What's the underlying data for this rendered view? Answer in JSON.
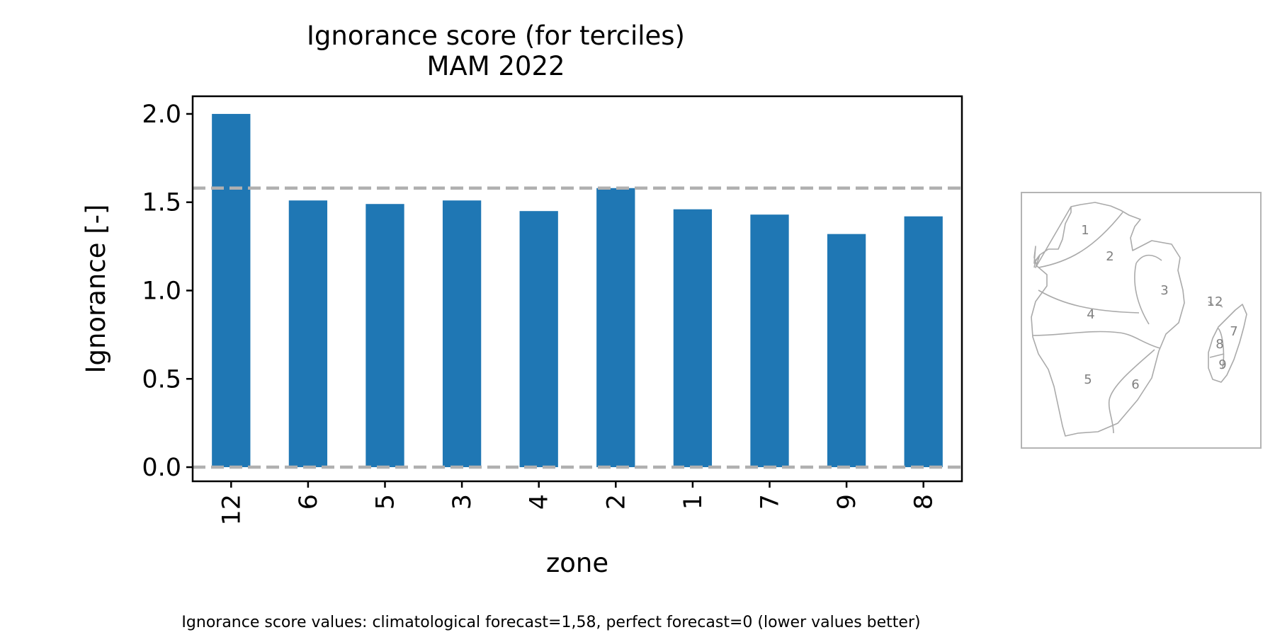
{
  "chart_data": {
    "type": "bar",
    "title": "Ignorance score (for terciles)",
    "subtitle": "MAM 2022",
    "xlabel": "zone",
    "ylabel": "Ignorance [-]",
    "categories": [
      "12",
      "6",
      "5",
      "3",
      "4",
      "2",
      "1",
      "7",
      "9",
      "8"
    ],
    "values": [
      2.0,
      1.51,
      1.49,
      1.51,
      1.45,
      1.58,
      1.46,
      1.43,
      1.32,
      1.42
    ],
    "yticks": [
      "0.0",
      "0.5",
      "1.0",
      "1.5",
      "2.0"
    ],
    "ylim": [
      -0.08,
      2.1
    ],
    "reference_lines": [
      1.58,
      0
    ],
    "bar_color": "#1f77b4",
    "reference_line_color": "#b0b0b0",
    "grid": false,
    "legend": "none",
    "footnote": "Ignorance score values: climatological forecast=1,58, perfect forecast=0 (lower values better)"
  },
  "inset_map": {
    "zone_labels": [
      "1",
      "2",
      "3",
      "12",
      "4",
      "7",
      "8",
      "5",
      "6",
      "9"
    ],
    "line_color": "#aaaaaa",
    "label_color": "#808080"
  }
}
